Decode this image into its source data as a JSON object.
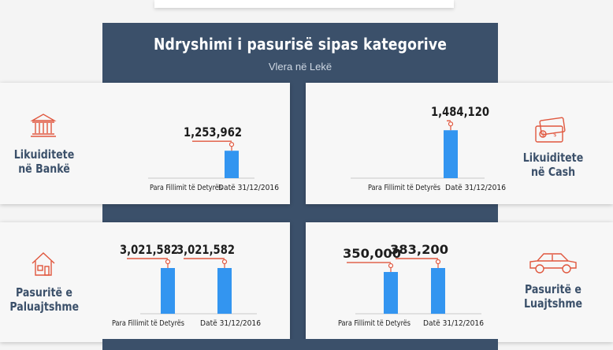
{
  "title": "Ndryshimi i pasurisë sipas kategorive",
  "subtitle": "Vlera në Lekë",
  "colors": {
    "banner": "#3b506a",
    "bar": "#3395f0",
    "accent": "#e0573e",
    "label": "#3b506a"
  },
  "cards": [
    {
      "label_line1": "Likuiditete",
      "label_line2": "në Bankë",
      "icon": "bank-icon"
    },
    {
      "label_line1": "Likuiditete",
      "label_line2": "në Cash",
      "icon": "cash-icon"
    },
    {
      "label_line1": "Pasuritë e",
      "label_line2": "Paluajtshme",
      "icon": "house-icon"
    },
    {
      "label_line1": "Pasuritë e",
      "label_line2": "Luajtshme",
      "icon": "car-icon"
    }
  ],
  "chart_data": [
    {
      "type": "bar",
      "categories": [
        "Para Fillimit të Detyrës",
        "Datë 31/12/2016"
      ],
      "values": [
        null,
        1253962
      ],
      "data_labels": [
        "",
        "1,253,962"
      ]
    },
    {
      "type": "bar",
      "categories": [
        "Para Fillimit të Detyrës",
        "Datë 31/12/2016"
      ],
      "values": [
        null,
        1484120
      ],
      "data_labels": [
        "",
        "1,484,120"
      ]
    },
    {
      "type": "bar",
      "categories": [
        "Para Fillimit të Detyrës",
        "Datë 31/12/2016"
      ],
      "values": [
        3021582,
        3021582
      ],
      "data_labels": [
        "3,021,582",
        "3,021,582"
      ]
    },
    {
      "type": "bar",
      "categories": [
        "Para Fillimit të Detyrës",
        "Datë 31/12/2016"
      ],
      "values": [
        350000,
        383200
      ],
      "data_labels": [
        "350,000",
        "383,200"
      ]
    }
  ]
}
